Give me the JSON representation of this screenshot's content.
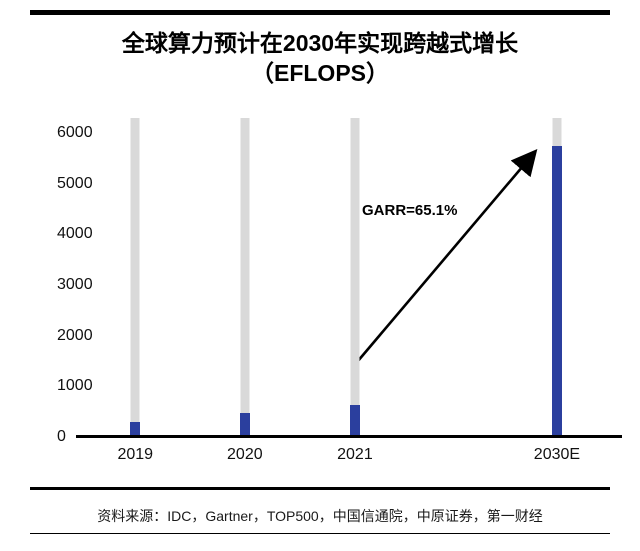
{
  "header": {
    "title_line1": "全球算力预计在2030年实现跨越式增长",
    "title_line2": "（EFLOPS）"
  },
  "chart_data": {
    "type": "bar",
    "title": "全球算力预计在2030年实现跨越式增长（EFLOPS）",
    "categories": [
      "2019",
      "2020",
      "2021",
      "2030E"
    ],
    "values": [
      300,
      480,
      640,
      5750
    ],
    "yticks": [
      0,
      1000,
      2000,
      3000,
      4000,
      5000,
      6000
    ],
    "ylim": [
      0,
      6300
    ],
    "xlabel": "",
    "ylabel": "",
    "grid": false,
    "legend": false,
    "annotation": "GARR=65.1%",
    "bar_color": "#2b3f9e",
    "background_bar_value": 6300,
    "background_bar_color": "#d9d9d9",
    "x_positions_pct": [
      5,
      26.7,
      48.5,
      88.5
    ]
  },
  "footer": {
    "source": "资料来源：IDC，Gartner，TOP500，中国信通院，中原证券，第一财经"
  }
}
